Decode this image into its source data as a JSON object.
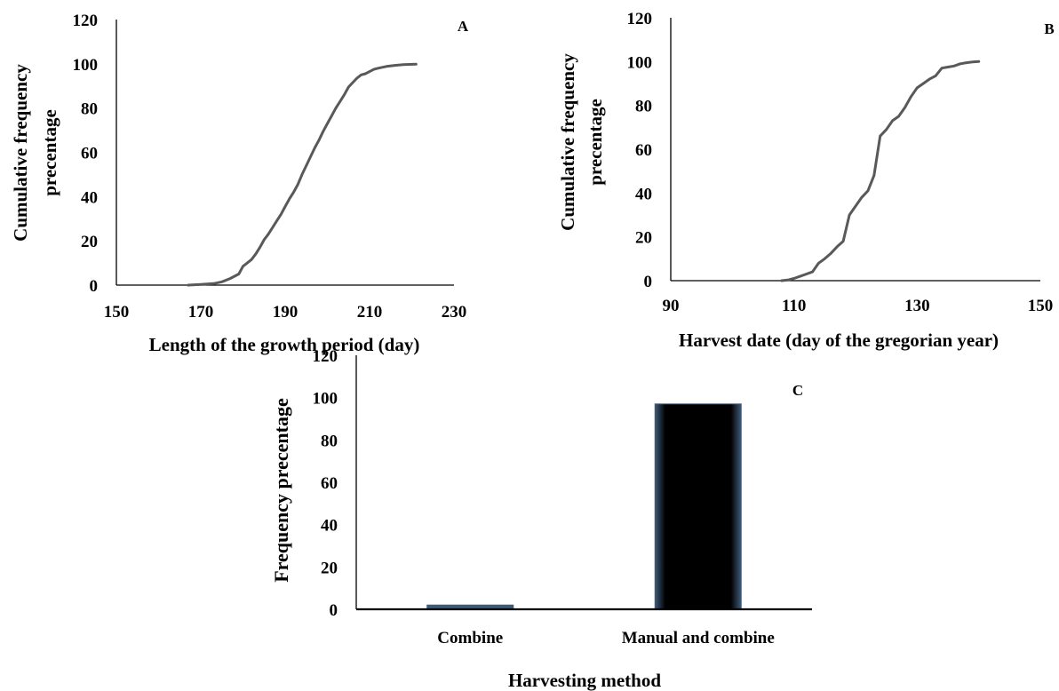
{
  "chart_data": [
    {
      "type": "line",
      "panel_label": "A",
      "xlabel": "Length of the growth period (day)",
      "ylabel_lines": [
        "Cumulative frequency",
        "precentage"
      ],
      "xlim": [
        150,
        230
      ],
      "ylim": [
        0,
        120
      ],
      "xticks": [
        150,
        170,
        190,
        210,
        230
      ],
      "yticks": [
        0,
        20,
        40,
        60,
        80,
        100,
        120
      ],
      "line_color": "#595959",
      "x": [
        167,
        170,
        173,
        175,
        177,
        178,
        179,
        180,
        181,
        182,
        183,
        184,
        185,
        186,
        187,
        188,
        189,
        190,
        191,
        192,
        193,
        194,
        195,
        196,
        197,
        198,
        199,
        200,
        201,
        202,
        203,
        204,
        205,
        206,
        207,
        208,
        209,
        210,
        211,
        212,
        214,
        216,
        218,
        221
      ],
      "y": [
        0,
        0.3,
        0.7,
        1.5,
        3,
        4,
        5,
        8.5,
        10,
        11.5,
        14,
        17,
        20.5,
        23,
        26,
        29,
        32,
        35.5,
        39,
        42,
        45.5,
        50,
        54,
        58,
        62,
        65.5,
        69.5,
        73,
        76.5,
        80,
        83,
        86,
        89.5,
        91.5,
        93.5,
        95,
        95.5,
        96.5,
        97.5,
        98,
        98.8,
        99.3,
        99.6,
        99.8
      ]
    },
    {
      "type": "line",
      "panel_label": "B",
      "xlabel": "Harvest date (day of the gregorian year)",
      "ylabel_lines": [
        "Cumulative frequency",
        "precentage"
      ],
      "xlim": [
        90,
        150
      ],
      "ylim": [
        0,
        120
      ],
      "xticks": [
        90,
        110,
        130,
        150
      ],
      "yticks": [
        0,
        20,
        40,
        60,
        80,
        100,
        120
      ],
      "line_color": "#595959",
      "x": [
        108,
        109,
        110,
        111,
        112,
        113,
        114,
        115,
        116,
        117,
        118,
        119,
        120,
        121,
        122,
        123,
        124,
        125,
        126,
        127,
        128,
        129,
        130,
        131,
        132,
        133,
        134,
        135,
        136,
        137,
        138,
        139,
        140
      ],
      "y": [
        0,
        0.3,
        1,
        2,
        3,
        4,
        8,
        10,
        12.5,
        15.5,
        18,
        30,
        34,
        38,
        41,
        48,
        66,
        69,
        73,
        75,
        79,
        84,
        88,
        90,
        92,
        93.5,
        97,
        97.5,
        98,
        99,
        99.5,
        99.8,
        100
      ]
    },
    {
      "type": "bar",
      "panel_label": "C",
      "xlabel": "Harvesting method",
      "ylabel": "Frequency precentage",
      "ylim": [
        0,
        120
      ],
      "yticks": [
        0,
        20,
        40,
        60,
        80,
        100,
        120
      ],
      "categories": [
        "Combine",
        "Manual and combine"
      ],
      "values": [
        2,
        97
      ],
      "bar_color": "#000000",
      "bar_edge_color": "#3e5a78"
    }
  ]
}
